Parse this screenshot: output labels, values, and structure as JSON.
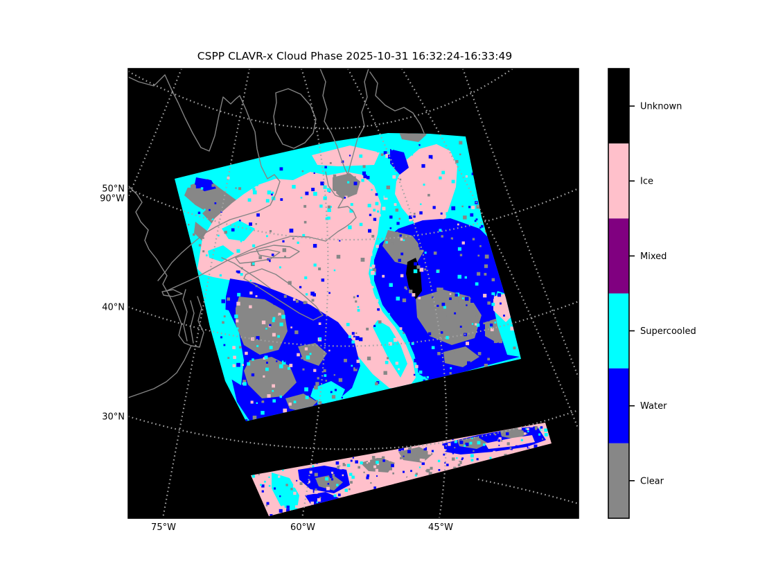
{
  "title": "CSPP CLAVR-x Cloud Phase 2025-10-31 16:32:24-16:33:49",
  "colors": {
    "background": "#ffffff",
    "map_background": "#000000",
    "coastline": "#848484",
    "graticule": "#a3a3a3",
    "unknown": "#000000",
    "ice": "#ffc0cb",
    "mixed": "#800080",
    "supercooled": "#00ffff",
    "water": "#0000ff",
    "clear": "#878787"
  },
  "axes": {
    "left_labels": [
      {
        "text": "50°N"
      },
      {
        "text": "90°W"
      },
      {
        "text": "40°N"
      },
      {
        "text": "30°N"
      }
    ],
    "bottom_labels": [
      {
        "text": "75°W"
      },
      {
        "text": "60°W"
      },
      {
        "text": "45°W"
      }
    ]
  },
  "legend": {
    "items": [
      {
        "label": "Unknown",
        "color": "#000000"
      },
      {
        "label": "Ice",
        "color": "#ffc0cb"
      },
      {
        "label": "Mixed",
        "color": "#800080"
      },
      {
        "label": "Supercooled",
        "color": "#00ffff"
      },
      {
        "label": "Water",
        "color": "#0000ff"
      },
      {
        "label": "Clear",
        "color": "#878787"
      }
    ]
  },
  "chart_data": {
    "type": "heatmap",
    "title": "CSPP CLAVR-x Cloud Phase 2025-10-31 16:32:24-16:33:49",
    "product": "CSPP CLAVR-x Cloud Phase",
    "date": "2025-10-31",
    "time_range": "16:32:24-16:33:49",
    "categories": [
      "Unknown",
      "Ice",
      "Mixed",
      "Supercooled",
      "Water",
      "Clear"
    ],
    "category_colors": [
      "#000000",
      "#ffc0cb",
      "#800080",
      "#00ffff",
      "#0000ff",
      "#878787"
    ],
    "x_tick_labels": [
      "75°W",
      "60°W",
      "45°W"
    ],
    "y_tick_labels": [
      "50°N",
      "40°N",
      "30°N"
    ],
    "extra_edge_label": "90°W",
    "legend_position": "right-colorbar",
    "grid": "dotted graticule",
    "map_region": "Northwest Atlantic / Eastern Canada: Gulf of St. Lawrence, Nova Scotia, Newfoundland, Labrador, US East Coast, southern Greenland",
    "swaths": [
      {
        "name": "main-granule",
        "description": "Large rotated satellite granule: ice (pink) core over the Gulf of St. Lawrence region, supercooled (cyan) band to the north and west, water (blue) masses southeast and southwest, clear (gray) patches over land (Labrador, Nova Scotia, interior), small unknown (black) patch east of center"
      },
      {
        "name": "secondary-granule",
        "description": "Thin rotated granule strip to the south: mostly ice (pink) with water (blue), clear (gray) and supercooled (cyan) mottling"
      }
    ]
  }
}
